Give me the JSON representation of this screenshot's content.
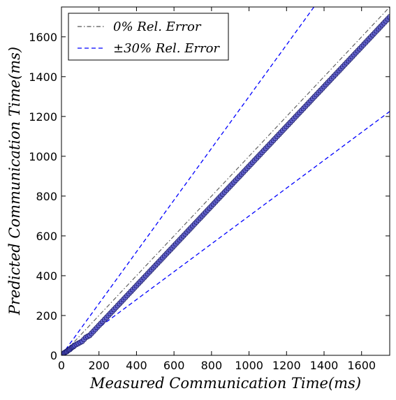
{
  "chart_data": {
    "type": "scatter",
    "title": "",
    "xlabel": "Measured Communication Time(ms)",
    "ylabel": "Predicted Communication Time(ms)",
    "xlim": [
      0,
      1750
    ],
    "ylim": [
      0,
      1750
    ],
    "xticks": [
      0,
      200,
      400,
      600,
      800,
      1000,
      1200,
      1400,
      1600
    ],
    "yticks": [
      0,
      200,
      400,
      600,
      800,
      1000,
      1200,
      1400,
      1600
    ],
    "grid": false,
    "legend_position": "top-left",
    "colors": {
      "points": "#5555cc",
      "point_edge": "#1a1a66",
      "ref_line": "#555555",
      "bound_lines": "#0000ff"
    },
    "series": [
      {
        "name": "0% Rel. Error",
        "kind": "reference-line",
        "slope": 1.0,
        "style": "dash-dot"
      },
      {
        "name": "±30% Rel. Error",
        "kind": "reference-lines",
        "slopes": [
          1.3,
          0.7
        ],
        "style": "dashed"
      },
      {
        "kind": "points",
        "points": [
          [
            5,
            5
          ],
          [
            10,
            8
          ],
          [
            15,
            12
          ],
          [
            20,
            15
          ],
          [
            25,
            18
          ],
          [
            30,
            20
          ],
          [
            35,
            25
          ],
          [
            40,
            28
          ],
          [
            45,
            30
          ],
          [
            50,
            35
          ],
          [
            55,
            40
          ],
          [
            60,
            42
          ],
          [
            65,
            45
          ],
          [
            70,
            50
          ],
          [
            80,
            55
          ],
          [
            90,
            60
          ],
          [
            100,
            65
          ],
          [
            110,
            70
          ],
          [
            120,
            80
          ],
          [
            130,
            90
          ],
          [
            140,
            95
          ],
          [
            150,
            100
          ],
          [
            160,
            110
          ],
          [
            170,
            120
          ],
          [
            180,
            130
          ],
          [
            190,
            140
          ],
          [
            200,
            150
          ],
          [
            210,
            160
          ],
          [
            220,
            170
          ],
          [
            230,
            180
          ],
          [
            240,
            190
          ],
          [
            250,
            200
          ],
          [
            260,
            210
          ],
          [
            270,
            220
          ],
          [
            280,
            230
          ],
          [
            290,
            240
          ],
          [
            300,
            250
          ],
          [
            310,
            260
          ],
          [
            320,
            270
          ],
          [
            330,
            280
          ],
          [
            340,
            290
          ],
          [
            350,
            300
          ],
          [
            360,
            310
          ],
          [
            370,
            320
          ],
          [
            380,
            330
          ],
          [
            390,
            340
          ],
          [
            400,
            350
          ],
          [
            410,
            360
          ],
          [
            420,
            370
          ],
          [
            430,
            380
          ],
          [
            440,
            390
          ],
          [
            450,
            400
          ],
          [
            460,
            410
          ],
          [
            470,
            420
          ],
          [
            480,
            430
          ],
          [
            490,
            440
          ],
          [
            500,
            450
          ],
          [
            510,
            460
          ],
          [
            520,
            470
          ],
          [
            530,
            480
          ],
          [
            540,
            490
          ],
          [
            550,
            500
          ],
          [
            560,
            510
          ],
          [
            570,
            520
          ],
          [
            580,
            530
          ],
          [
            590,
            540
          ],
          [
            600,
            550
          ],
          [
            610,
            560
          ],
          [
            620,
            570
          ],
          [
            630,
            580
          ],
          [
            640,
            590
          ],
          [
            650,
            600
          ],
          [
            660,
            610
          ],
          [
            670,
            620
          ],
          [
            680,
            630
          ],
          [
            690,
            640
          ],
          [
            700,
            650
          ],
          [
            710,
            660
          ],
          [
            720,
            670
          ],
          [
            730,
            680
          ],
          [
            740,
            690
          ],
          [
            750,
            700
          ],
          [
            760,
            710
          ],
          [
            770,
            720
          ],
          [
            780,
            730
          ],
          [
            790,
            740
          ],
          [
            800,
            750
          ],
          [
            810,
            760
          ],
          [
            820,
            770
          ],
          [
            830,
            780
          ],
          [
            840,
            790
          ],
          [
            850,
            800
          ],
          [
            860,
            810
          ],
          [
            870,
            820
          ],
          [
            880,
            830
          ],
          [
            890,
            840
          ],
          [
            900,
            850
          ],
          [
            910,
            860
          ],
          [
            920,
            870
          ],
          [
            930,
            880
          ],
          [
            940,
            890
          ],
          [
            950,
            900
          ],
          [
            960,
            910
          ],
          [
            970,
            920
          ],
          [
            980,
            930
          ],
          [
            990,
            940
          ],
          [
            1000,
            950
          ],
          [
            1010,
            960
          ],
          [
            1020,
            970
          ],
          [
            1030,
            980
          ],
          [
            1040,
            990
          ],
          [
            1050,
            1000
          ],
          [
            1060,
            1010
          ],
          [
            1070,
            1020
          ],
          [
            1080,
            1030
          ],
          [
            1090,
            1040
          ],
          [
            1100,
            1050
          ],
          [
            1110,
            1060
          ],
          [
            1120,
            1070
          ],
          [
            1130,
            1080
          ],
          [
            1140,
            1090
          ],
          [
            1150,
            1100
          ],
          [
            1160,
            1110
          ],
          [
            1170,
            1120
          ],
          [
            1180,
            1130
          ],
          [
            1190,
            1140
          ],
          [
            1200,
            1150
          ],
          [
            1210,
            1160
          ],
          [
            1220,
            1170
          ],
          [
            1230,
            1180
          ],
          [
            1240,
            1190
          ],
          [
            1250,
            1200
          ],
          [
            1260,
            1210
          ],
          [
            1270,
            1220
          ],
          [
            1280,
            1230
          ],
          [
            1290,
            1240
          ],
          [
            1300,
            1250
          ],
          [
            1310,
            1260
          ],
          [
            1320,
            1270
          ],
          [
            1330,
            1280
          ],
          [
            1340,
            1290
          ],
          [
            1350,
            1300
          ],
          [
            1360,
            1310
          ],
          [
            1370,
            1320
          ],
          [
            1380,
            1330
          ],
          [
            1390,
            1340
          ],
          [
            1400,
            1350
          ],
          [
            1410,
            1360
          ],
          [
            1420,
            1370
          ],
          [
            1430,
            1380
          ],
          [
            1440,
            1390
          ],
          [
            1450,
            1400
          ],
          [
            1460,
            1410
          ],
          [
            1470,
            1420
          ],
          [
            1480,
            1430
          ],
          [
            1490,
            1440
          ],
          [
            1500,
            1450
          ],
          [
            1510,
            1460
          ],
          [
            1520,
            1470
          ],
          [
            1530,
            1480
          ],
          [
            1540,
            1490
          ],
          [
            1550,
            1500
          ],
          [
            1560,
            1510
          ],
          [
            1570,
            1520
          ],
          [
            1580,
            1530
          ],
          [
            1590,
            1540
          ],
          [
            1600,
            1550
          ],
          [
            1610,
            1560
          ],
          [
            1620,
            1570
          ],
          [
            1630,
            1580
          ],
          [
            1640,
            1590
          ],
          [
            1650,
            1600
          ],
          [
            1660,
            1610
          ],
          [
            1670,
            1620
          ],
          [
            1680,
            1630
          ],
          [
            1690,
            1640
          ],
          [
            1700,
            1650
          ],
          [
            1710,
            1660
          ],
          [
            1720,
            1670
          ],
          [
            1730,
            1680
          ],
          [
            1740,
            1690
          ],
          [
            1750,
            1700
          ]
        ]
      }
    ]
  },
  "legend": {
    "ref_label": "0% Rel. Error",
    "bound_label": "±30% Rel. Error"
  }
}
